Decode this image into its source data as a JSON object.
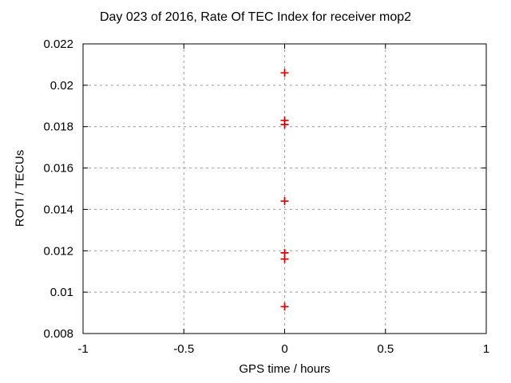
{
  "chart_data": {
    "type": "scatter",
    "title": "Day 023 of 2016, Rate Of TEC Index for receiver mop2",
    "xlabel": "GPS time / hours",
    "ylabel": "ROTI / TECUs",
    "xlim": [
      -1,
      1
    ],
    "ylim": [
      0.008,
      0.022
    ],
    "xticks": [
      {
        "value": -1,
        "label": "-1"
      },
      {
        "value": -0.5,
        "label": "-0.5"
      },
      {
        "value": 0,
        "label": "0"
      },
      {
        "value": 0.5,
        "label": "0.5"
      },
      {
        "value": 1,
        "label": "1"
      }
    ],
    "yticks": [
      {
        "value": 0.008,
        "label": "0.008"
      },
      {
        "value": 0.01,
        "label": "0.01"
      },
      {
        "value": 0.012,
        "label": "0.012"
      },
      {
        "value": 0.014,
        "label": "0.014"
      },
      {
        "value": 0.016,
        "label": "0.016"
      },
      {
        "value": 0.018,
        "label": "0.018"
      },
      {
        "value": 0.02,
        "label": "0.02"
      },
      {
        "value": 0.022,
        "label": "0.022"
      }
    ],
    "grid": true,
    "legend_position": "none",
    "series": [
      {
        "name": "ROTI",
        "marker": "plus",
        "color": "#dd0000",
        "points": [
          {
            "x": 0,
            "y": 0.0206
          },
          {
            "x": 0,
            "y": 0.0183
          },
          {
            "x": 0,
            "y": 0.0181
          },
          {
            "x": 0,
            "y": 0.0144
          },
          {
            "x": 0,
            "y": 0.0119
          },
          {
            "x": 0,
            "y": 0.0116
          },
          {
            "x": 0,
            "y": 0.0093
          }
        ]
      }
    ],
    "colors": {
      "background": "#ffffff",
      "border": "#000000",
      "grid": "#9e9e9e",
      "text": "#000000"
    }
  }
}
